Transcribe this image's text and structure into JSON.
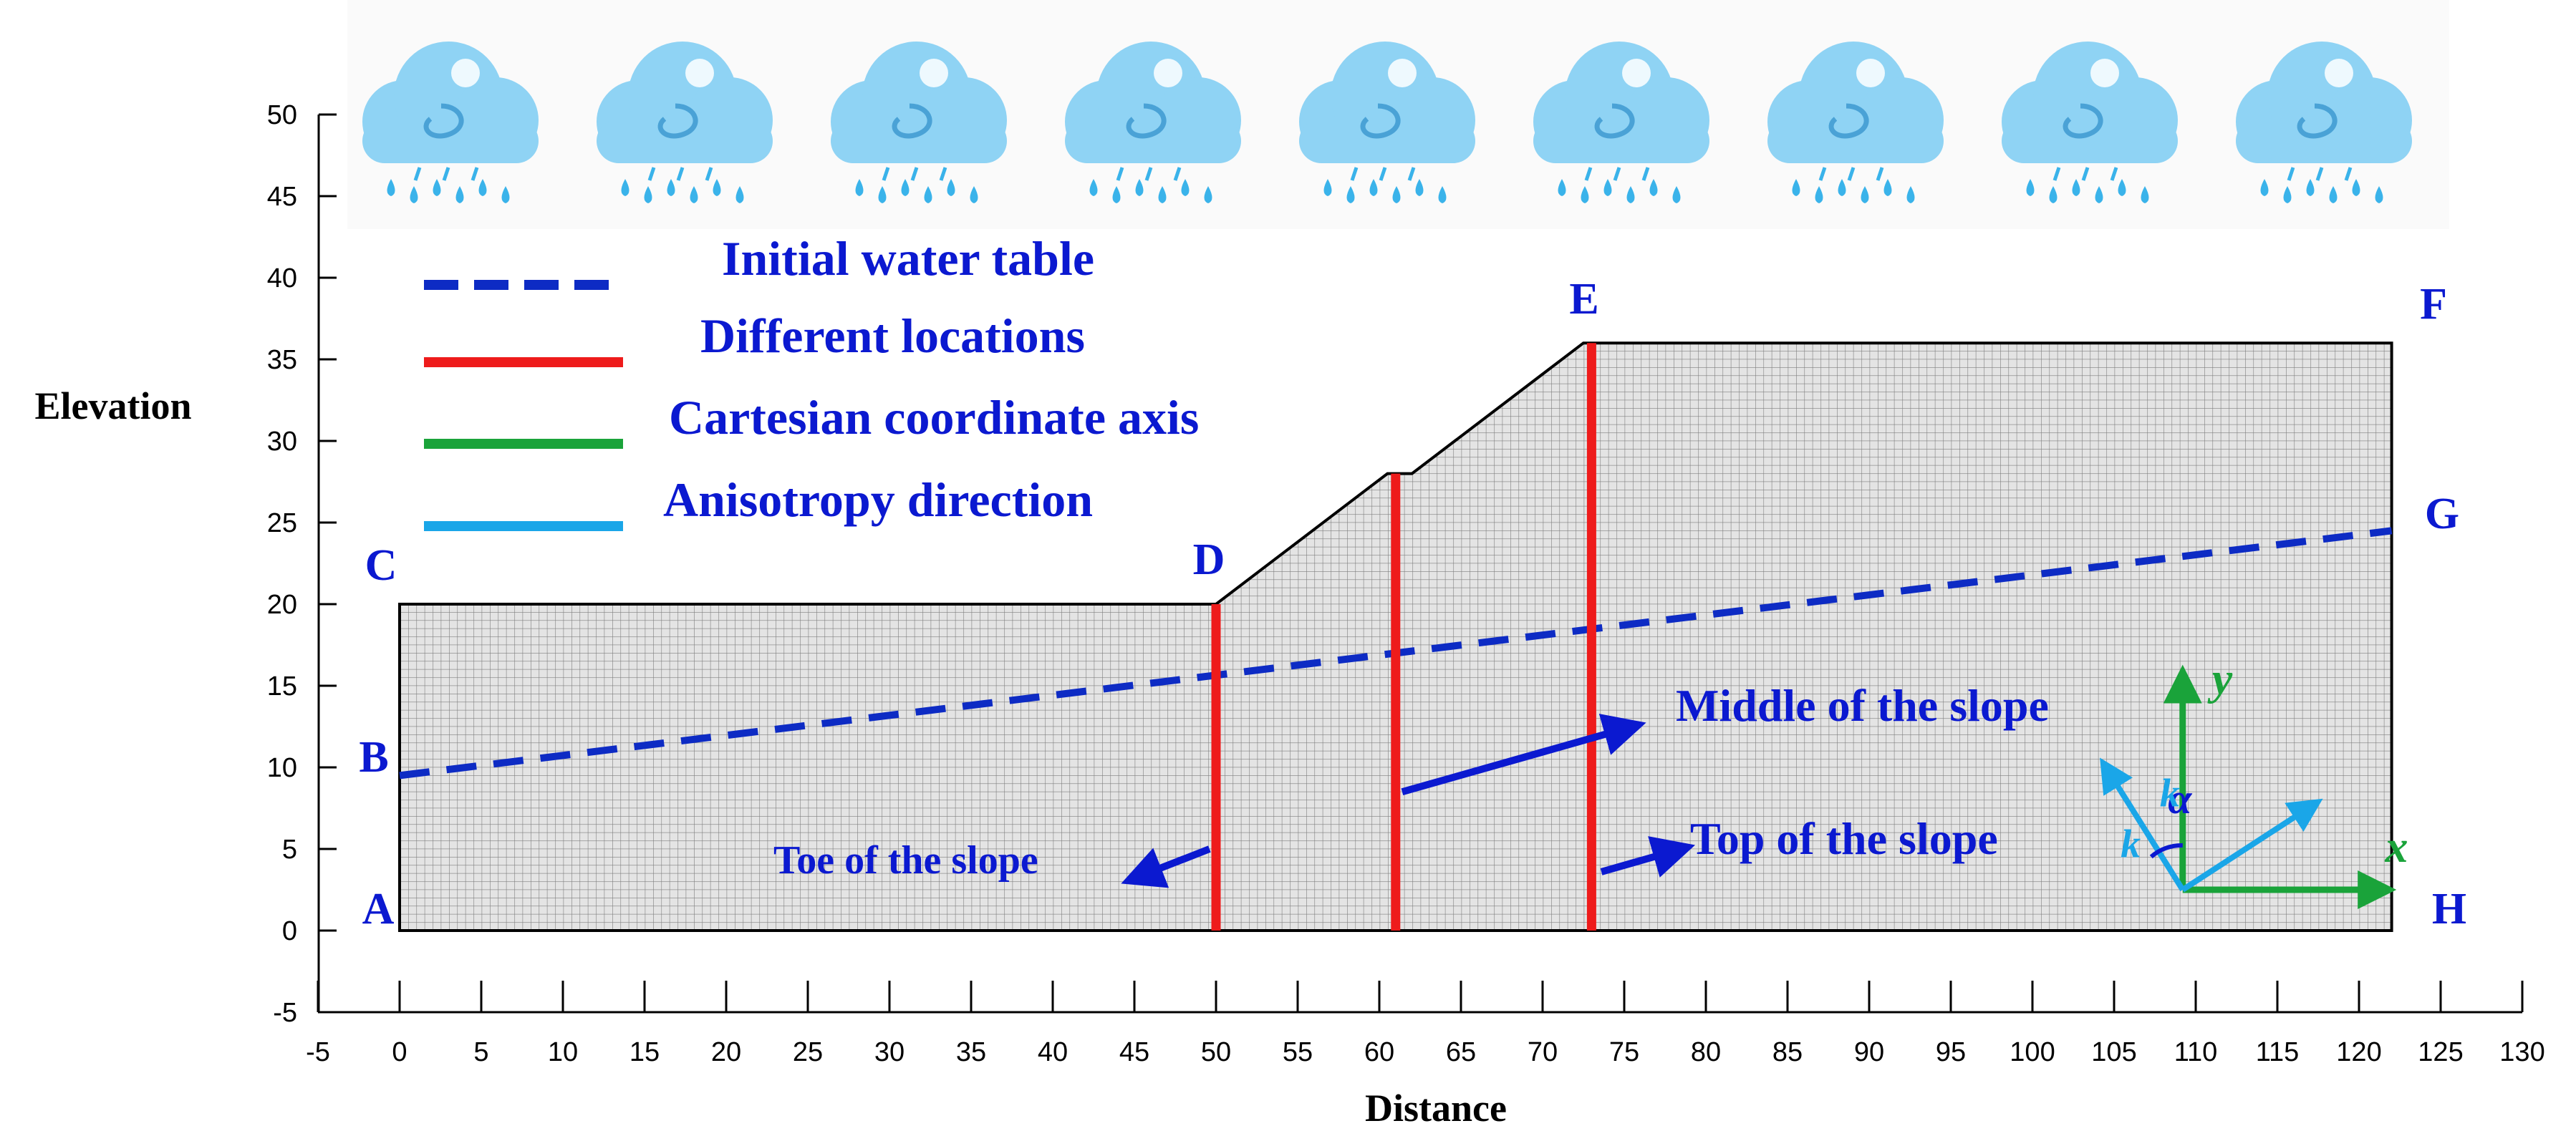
{
  "axes": {
    "xlabel": "Distance",
    "ylabel": "Elevation",
    "x_ticks": [
      -5,
      0,
      5,
      10,
      15,
      20,
      25,
      30,
      35,
      40,
      45,
      50,
      55,
      60,
      65,
      70,
      75,
      80,
      85,
      90,
      95,
      100,
      105,
      110,
      115,
      120,
      125,
      130
    ],
    "y_ticks": [
      -5,
      0,
      5,
      10,
      15,
      20,
      25,
      30,
      35,
      40,
      45,
      50
    ],
    "xlim": [
      -5,
      130
    ],
    "ylim": [
      -5,
      50
    ]
  },
  "legend": [
    {
      "label": "Initial water table",
      "style": "dashed",
      "color": "#0d2bc4"
    },
    {
      "label": "Different locations",
      "style": "solid",
      "color": "#ee1b1b"
    },
    {
      "label": "Cartesian coordinate axis",
      "style": "solid",
      "color": "#1aa33a"
    },
    {
      "label": "Anisotropy direction",
      "style": "solid",
      "color": "#1aa6e8"
    }
  ],
  "geometry": {
    "points": [
      {
        "name": "A",
        "x": 0,
        "y": 0
      },
      {
        "name": "B",
        "x": 0,
        "y": 9.5
      },
      {
        "name": "C",
        "x": 0,
        "y": 20
      },
      {
        "name": "D",
        "x": 50,
        "y": 20
      },
      {
        "name": "E",
        "x": 72.5,
        "y": 36
      },
      {
        "name": "F",
        "x": 122,
        "y": 36
      },
      {
        "name": "G",
        "x": 122,
        "y": 24.5
      },
      {
        "name": "H",
        "x": 122,
        "y": 2.5
      }
    ],
    "berm": [
      [
        60.5,
        28
      ],
      [
        62,
        28
      ]
    ],
    "water_table": [
      [
        0,
        9.5
      ],
      [
        122,
        24.5
      ]
    ],
    "locations": [
      {
        "x": 50,
        "y_top": 20,
        "label": "Toe of the slope"
      },
      {
        "x": 61,
        "y_top": 28,
        "label": "Middle of the slope"
      },
      {
        "x": 73,
        "y_top": 36,
        "label": "Top of the slope"
      }
    ]
  },
  "symbols": {
    "x_axis": "x",
    "y_axis": "y",
    "angle": "α",
    "k_major": "k",
    "k_minor": "k"
  },
  "rain_clouds": {
    "count": 9,
    "cloud_color": "#8fd3f4",
    "drop_color": "#3ab3ea"
  },
  "colors": {
    "label_blue": "#0b19d0",
    "mesh_fill": "#dcdcdc",
    "mesh_line": "#8a8a8a"
  }
}
